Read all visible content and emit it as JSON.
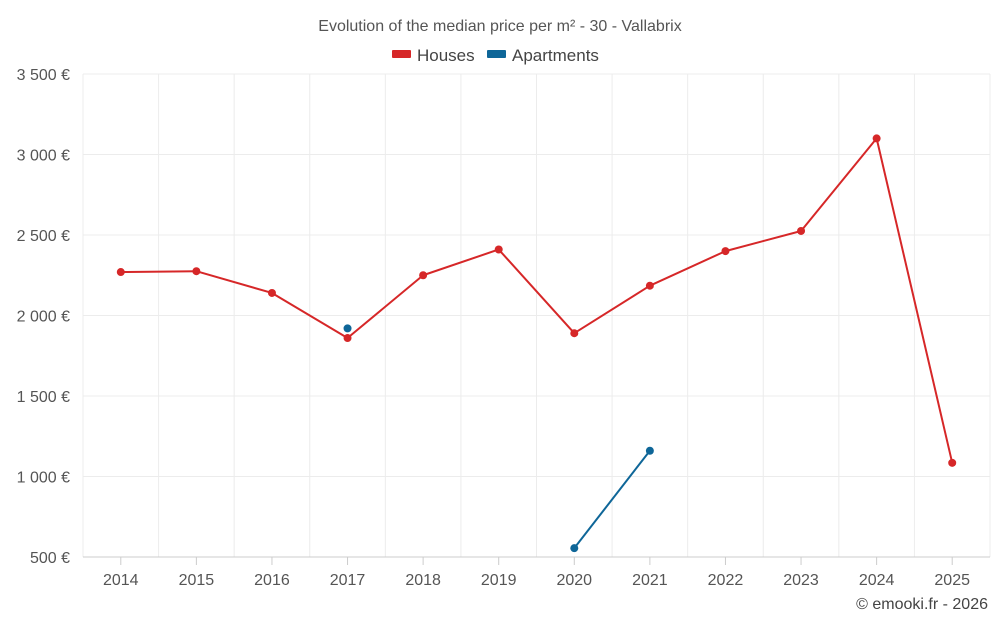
{
  "chart_data": {
    "type": "line",
    "title": "Evolution of the median price per m² - 30 - Vallabrix",
    "categories": [
      "2014",
      "2015",
      "2016",
      "2017",
      "2018",
      "2019",
      "2020",
      "2021",
      "2022",
      "2023",
      "2024",
      "2025"
    ],
    "ylim": [
      500,
      3500
    ],
    "yticks": [
      500,
      1000,
      1500,
      2000,
      2500,
      3000,
      3500
    ],
    "ytick_labels": [
      "500 €",
      "1 000 €",
      "1 500 €",
      "2 000 €",
      "2 500 €",
      "3 000 €",
      "3 500 €"
    ],
    "series": [
      {
        "name": "Houses",
        "color": "#d62728",
        "values": [
          2270,
          2275,
          2140,
          1860,
          2250,
          2410,
          1890,
          2185,
          2400,
          2525,
          3100,
          1085
        ]
      },
      {
        "name": "Apartments",
        "color": "#0e6698",
        "values": [
          null,
          null,
          null,
          1920,
          null,
          null,
          555,
          1160,
          null,
          null,
          null,
          null
        ]
      }
    ],
    "legend_position": "top-center",
    "grid": true
  },
  "credit": "© emooki.fr - 2026"
}
